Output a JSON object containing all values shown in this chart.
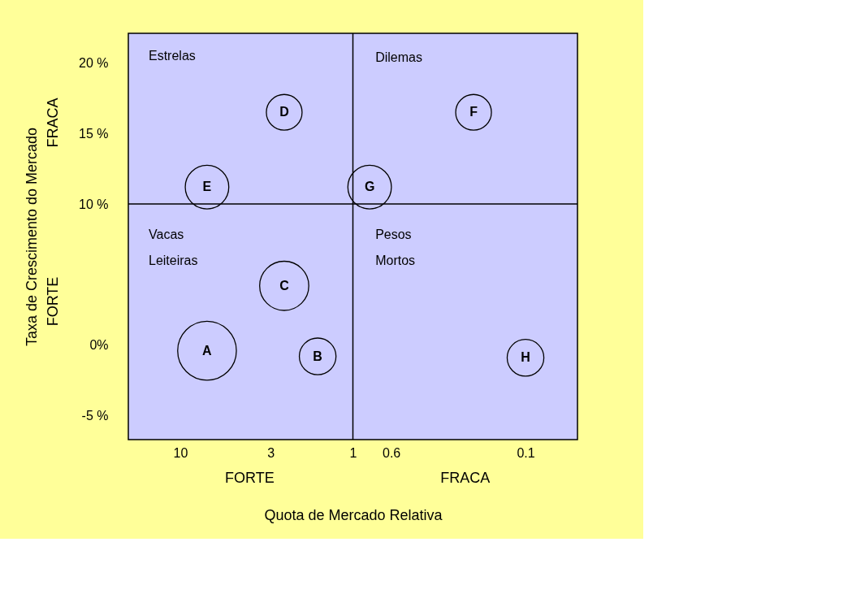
{
  "chart_data": {
    "type": "bubble",
    "xlabel": "Quota de Mercado Relativa",
    "ylabel": "Taxa de Crescimento do Mercado",
    "log": "x",
    "xlim": [
      20,
      0.05
    ],
    "xticks": [
      10,
      3,
      1,
      0.6,
      0.1
    ],
    "ylim": [
      -6.7,
      22.1
    ],
    "yticks": [
      {
        "value": 20,
        "label": "20 %"
      },
      {
        "value": 15,
        "label": "15 %"
      },
      {
        "value": 10,
        "label": "10 %"
      },
      {
        "value": 0,
        "label": "0%"
      },
      {
        "value": -5,
        "label": "-5 %"
      }
    ],
    "grid": false,
    "series": [
      {
        "color": "#000000",
        "x": [
          7,
          1.6,
          2.5,
          2.5,
          7,
          0.2,
          0.8,
          0.1
        ],
        "values": [
          -0.4,
          -0.8,
          4.2,
          16.5,
          11.2,
          16.5,
          11.2,
          -0.9
        ],
        "sizes": [
          1,
          0.39,
          0.7,
          0.37,
          0.55,
          0.37,
          0.55,
          0.39
        ],
        "value_labels": [
          "A",
          "B",
          "C",
          "D",
          "E",
          "F",
          "G",
          "H"
        ]
      }
    ],
    "ref_lines": [
      {
        "axis": "x",
        "value": 1
      },
      {
        "axis": "y",
        "value": 10
      }
    ],
    "annotations": [
      "FRACA",
      "FORTE",
      "FORTE",
      "FRACA",
      "Estrelas",
      "Dilemas",
      "Vacas Leiteiras",
      "Pesos Mortos"
    ]
  }
}
